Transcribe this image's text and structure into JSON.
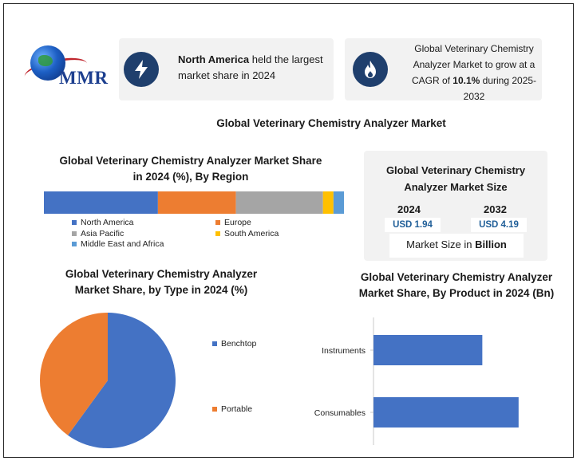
{
  "brand": {
    "name": "MMR"
  },
  "highlight_left": {
    "bold": "North America",
    "text": " held the largest market share in 2024",
    "icon": "lightning-icon"
  },
  "highlight_right": {
    "pre": "Global Veterinary Chemistry Analyzer Market to grow at a CAGR of ",
    "bold": "10.1%",
    "post": " during 2025-2032",
    "icon": "flame-icon"
  },
  "main_title": "Global Veterinary Chemistry Analyzer Market",
  "market_size": {
    "title": "Global Veterinary Chemistry Analyzer Market Size",
    "year_a": "2024",
    "value_a": "USD 1.94",
    "year_b": "2032",
    "value_b": "USD 4.19",
    "caption_pre": "Market Size in ",
    "caption_bold": "Billion"
  },
  "chart_data": [
    {
      "type": "bar",
      "orientation": "horizontal-stacked",
      "title": "Global Veterinary Chemistry Analyzer Market Share in 2024 (%), By Region",
      "series": [
        {
          "name": "North America",
          "value": 38,
          "color": "#4472c4"
        },
        {
          "name": "Europe",
          "value": 26,
          "color": "#ed7d31"
        },
        {
          "name": "Asia Pacific",
          "value": 29,
          "color": "#a5a5a5"
        },
        {
          "name": "South America",
          "value": 3.5,
          "color": "#ffc000"
        },
        {
          "name": "Middle East and Africa",
          "value": 3.5,
          "color": "#5b9bd5"
        }
      ],
      "legend_position": "bottom"
    },
    {
      "type": "pie",
      "title": "Global Veterinary Chemistry Analyzer Market Share, by Type in 2024 (%)",
      "slices": [
        {
          "name": "Benchtop",
          "value": 60,
          "color": "#4472c4"
        },
        {
          "name": "Portable",
          "value": 40,
          "color": "#ed7d31"
        }
      ],
      "legend_position": "right"
    },
    {
      "type": "bar",
      "orientation": "horizontal",
      "title": "Global Veterinary Chemistry Analyzer Market Share, By Product in 2024 (Bn)",
      "categories": [
        "Instruments",
        "Consumables"
      ],
      "values": [
        0.75,
        1.0
      ],
      "color": "#4472c4",
      "xlim": [
        0,
        1.1
      ]
    }
  ]
}
